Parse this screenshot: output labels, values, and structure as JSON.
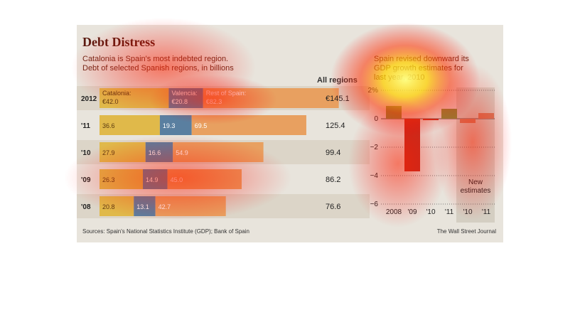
{
  "title": "Debt Distress",
  "subtitle_line1": "Catalonia is Spain's most indebted region.",
  "subtitle_line2": "Debt of selected Spanish regions, in billions",
  "all_regions_header": "All regions",
  "right_title": "Spain revised downward its GDP growth estimates for last year, 2010",
  "new_estimates_label": "New estimates",
  "source": "Sources: Spain's National Statistics Institute (GDP); Bank of Spain",
  "credit": "The Wall Street Journal",
  "colors": {
    "catalonia": "#e0b94a",
    "valencia": "#5a7fa0",
    "rest": "#e8a060",
    "bar_pos": "#7a9a40",
    "bar_neg": "#c03020",
    "bar_new": "#d08060"
  },
  "chart_data": [
    {
      "type": "bar",
      "orientation": "horizontal-stacked",
      "categories": [
        "2012",
        "'11",
        "'10",
        "'09",
        "'08"
      ],
      "series": [
        {
          "name": "Catalonia",
          "values": [
            42.0,
            36.6,
            27.9,
            26.3,
            20.8
          ],
          "labels": [
            "€42.0",
            "36.6",
            "27.9",
            "26.3",
            "20.8"
          ]
        },
        {
          "name": "Valencia",
          "values": [
            20.8,
            19.3,
            16.6,
            14.9,
            13.1
          ],
          "labels": [
            "€20.8",
            "19.3",
            "16.6",
            "14.9",
            "13.1"
          ]
        },
        {
          "name": "Rest of Spain",
          "values": [
            82.3,
            69.5,
            54.9,
            45.0,
            42.7
          ],
          "labels": [
            "€82.3",
            "69.5",
            "54.9",
            "45.0",
            "42.7"
          ]
        }
      ],
      "totals": [
        "€145.1",
        "125.4",
        "99.4",
        "86.2",
        "76.6"
      ],
      "series_name_labels": [
        "Catalonia:",
        "Valencia:",
        "Rest of Spain:"
      ]
    },
    {
      "type": "bar",
      "categories": [
        "2008",
        "'09",
        "'10",
        "'11",
        "'10",
        "'11"
      ],
      "values": [
        0.9,
        -3.7,
        -0.1,
        0.7,
        -0.3,
        0.4
      ],
      "new_estimates": [
        false,
        false,
        false,
        false,
        true,
        true
      ],
      "ylim": [
        -6,
        2
      ],
      "yticks": [
        2,
        0,
        -2,
        -4,
        -6
      ],
      "ytick_labels": [
        "2%",
        "0",
        "−2",
        "−4",
        "−6"
      ]
    }
  ]
}
